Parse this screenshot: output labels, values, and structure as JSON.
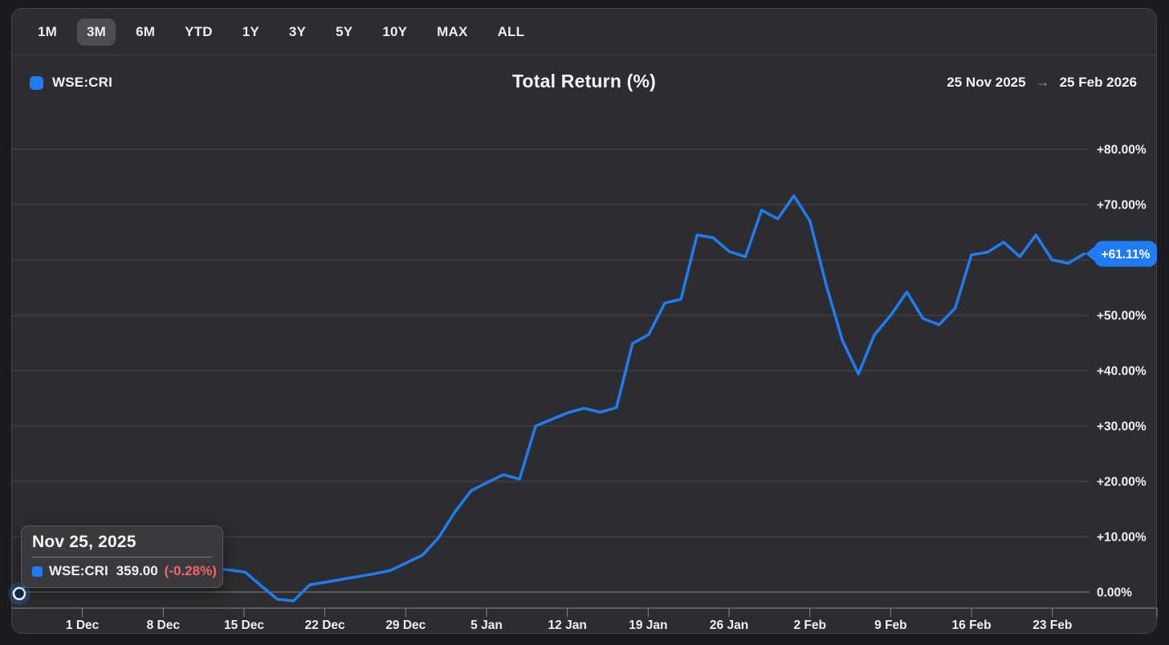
{
  "toolbar": {
    "ranges": [
      {
        "label": "1M",
        "selected": false
      },
      {
        "label": "3M",
        "selected": true
      },
      {
        "label": "6M",
        "selected": false
      },
      {
        "label": "YTD",
        "selected": false
      },
      {
        "label": "1Y",
        "selected": false
      },
      {
        "label": "3Y",
        "selected": false
      },
      {
        "label": "5Y",
        "selected": false
      },
      {
        "label": "10Y",
        "selected": false
      },
      {
        "label": "MAX",
        "selected": false
      },
      {
        "label": "ALL",
        "selected": false
      }
    ]
  },
  "header": {
    "legend_symbol": "WSE:CRI",
    "title": "Total Return (%)",
    "date_from": "25 Nov 2025",
    "date_arrow": "→",
    "date_to": "25 Feb 2026"
  },
  "tooltip": {
    "date": "Nov 25, 2025",
    "symbol": "WSE:CRI",
    "price": "359.00",
    "change": "(-0.28%)"
  },
  "last_value_badge": "+61.11%",
  "colors": {
    "accent_blue": "#1f7cf6",
    "negative_red": "#f2646c",
    "gridline": "#4a4a4e",
    "axis": "#87878c",
    "label_text": "#f0f0f2"
  },
  "chart_data": {
    "type": "line",
    "title": "Total Return (%)",
    "series": [
      {
        "name": "WSE:CRI",
        "unit": "%",
        "start_date": "25 Nov 2025",
        "end_date": "25 Feb 2026",
        "last_value": 61.11,
        "values": [
          -0.28,
          3.8,
          4.1,
          4.0,
          4.2,
          4.4,
          4.3,
          4.5,
          4.4,
          4.5,
          4.4,
          4.3,
          4.2,
          4.0,
          3.6,
          1.1,
          -1.3,
          -1.6,
          1.3,
          1.8,
          2.3,
          2.8,
          3.3,
          3.9,
          5.3,
          6.7,
          9.9,
          14.5,
          18.3,
          19.8,
          21.2,
          20.4,
          30.0,
          31.2,
          32.4,
          33.2,
          32.5,
          33.3,
          44.9,
          46.5,
          52.2,
          52.9,
          64.5,
          64.0,
          61.5,
          60.6,
          69.0,
          67.4,
          71.6,
          67.0,
          55.5,
          45.5,
          39.4,
          46.5,
          50.0,
          54.2,
          49.4,
          48.3,
          51.3,
          60.9,
          61.4,
          63.2,
          60.6,
          64.5,
          60.0,
          59.4,
          61.11
        ]
      }
    ],
    "y_axis": {
      "ylim": [
        -5,
        85
      ],
      "gridline_values": [
        0,
        10,
        20,
        30,
        40,
        50,
        60,
        70,
        80
      ],
      "labels": [
        {
          "value": 80,
          "label": "+80.00%"
        },
        {
          "value": 70,
          "label": "+70.00%"
        },
        {
          "value": 50,
          "label": "+50.00%"
        },
        {
          "value": 40,
          "label": "+40.00%"
        },
        {
          "value": 30,
          "label": "+30.00%"
        },
        {
          "value": 20,
          "label": "+20.00%"
        },
        {
          "value": 10,
          "label": "+10.00%"
        },
        {
          "value": 0,
          "label": "0.00%"
        }
      ]
    },
    "x_axis": {
      "tick_labels": [
        "1 Dec",
        "8 Dec",
        "15 Dec",
        "22 Dec",
        "29 Dec",
        "5 Jan",
        "12 Jan",
        "19 Jan",
        "26 Jan",
        "2 Feb",
        "9 Feb",
        "16 Feb",
        "23 Feb"
      ]
    },
    "legend": [
      "WSE:CRI"
    ],
    "grid": true,
    "legend_position": "top-left"
  }
}
